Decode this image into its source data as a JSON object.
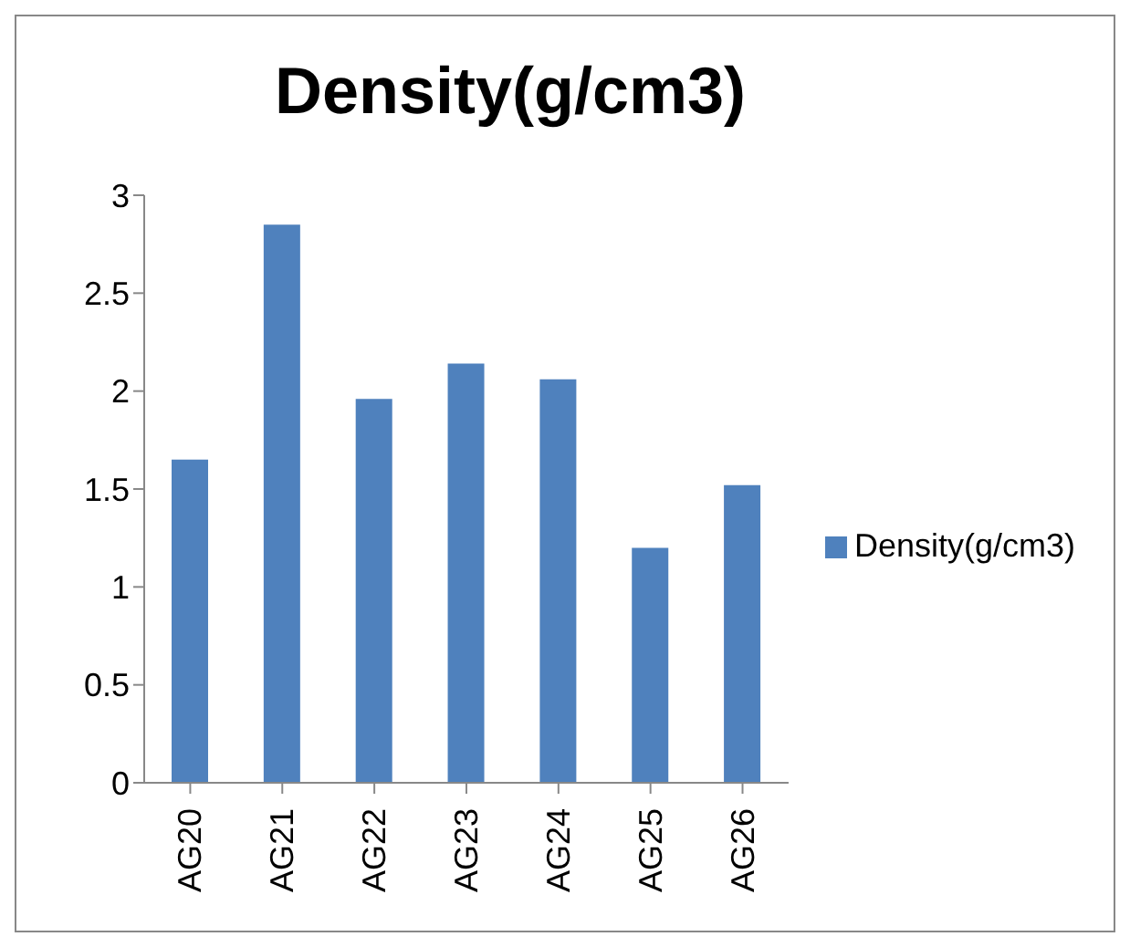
{
  "chart_data": {
    "type": "bar",
    "title": "Density(g/cm3)",
    "categories": [
      "AG20",
      "AG21",
      "AG22",
      "AG23",
      "AG24",
      "AG25",
      "AG26"
    ],
    "series": [
      {
        "name": "Density(g/cm3)",
        "color": "#4f81bd",
        "values": [
          1.65,
          2.85,
          1.96,
          2.14,
          2.06,
          1.2,
          1.52
        ]
      }
    ],
    "ylim": [
      0,
      3
    ],
    "yticks": [
      0,
      0.5,
      1,
      1.5,
      2,
      2.5,
      3
    ],
    "grid": false,
    "legend": "right"
  }
}
